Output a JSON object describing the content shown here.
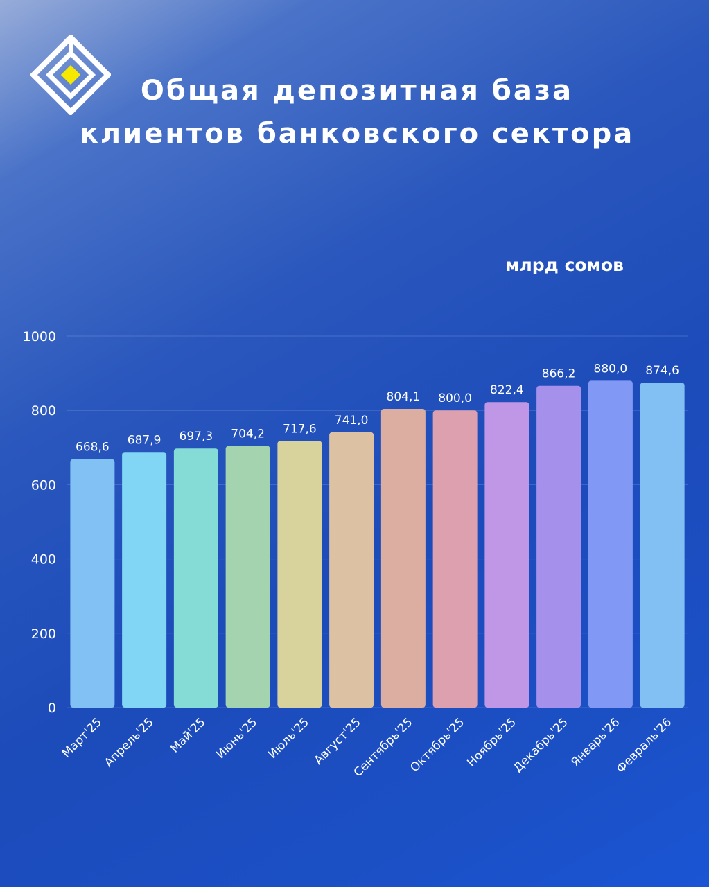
{
  "title_line1": "Общая депозитная база",
  "title_line2": "клиентов банковского сектора",
  "unit": "млрд сомов",
  "chart_data": {
    "type": "bar",
    "categories": [
      "Март'25",
      "Апрель'25",
      "Май'25",
      "Июнь'25",
      "Июль'25",
      "Август'25",
      "Сентябрь'25",
      "Октябрь'25",
      "Ноябрь'25",
      "Декабрь'25",
      "Январь'26",
      "Февраль'26"
    ],
    "values": [
      668.6,
      687.9,
      697.3,
      704.2,
      717.6,
      741.0,
      804.1,
      800.0,
      822.4,
      866.2,
      880.0,
      874.6
    ],
    "value_labels": [
      "668,6",
      "687,9",
      "697,3",
      "704,2",
      "717,6",
      "741,0",
      "804,1",
      "800,0",
      "822,4",
      "866,2",
      "880,0",
      "874,6"
    ],
    "bar_colors": [
      "#82c1f4",
      "#80d6f4",
      "#85dbd6",
      "#a4d3af",
      "#d8d39c",
      "#dcc2a2",
      "#dcaea2",
      "#dca0ae",
      "#c096e6",
      "#a591ec",
      "#8199f4",
      "#82c0f4"
    ],
    "yticks": [
      "0",
      "200",
      "400",
      "600",
      "800",
      "1000"
    ],
    "ylim": [
      0,
      1000
    ],
    "grid": true
  }
}
